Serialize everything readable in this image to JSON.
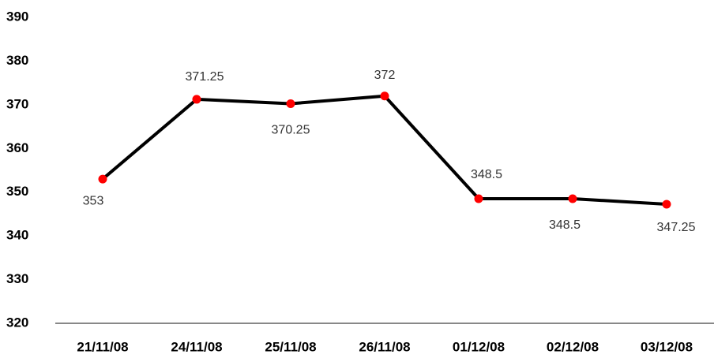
{
  "chart_data": {
    "type": "line",
    "categories": [
      "21/11/08",
      "24/11/08",
      "25/11/08",
      "26/11/08",
      "01/12/08",
      "02/12/08",
      "03/12/08"
    ],
    "series": [
      {
        "color": "#000000",
        "marker_color": "#ff0000",
        "values": [
          353,
          371.25,
          370.25,
          372,
          348.5,
          348.5,
          347.25
        ]
      }
    ],
    "ylim": [
      320,
      390
    ],
    "yticks": [
      320,
      330,
      340,
      350,
      360,
      370,
      380,
      390
    ],
    "grid": false
  }
}
